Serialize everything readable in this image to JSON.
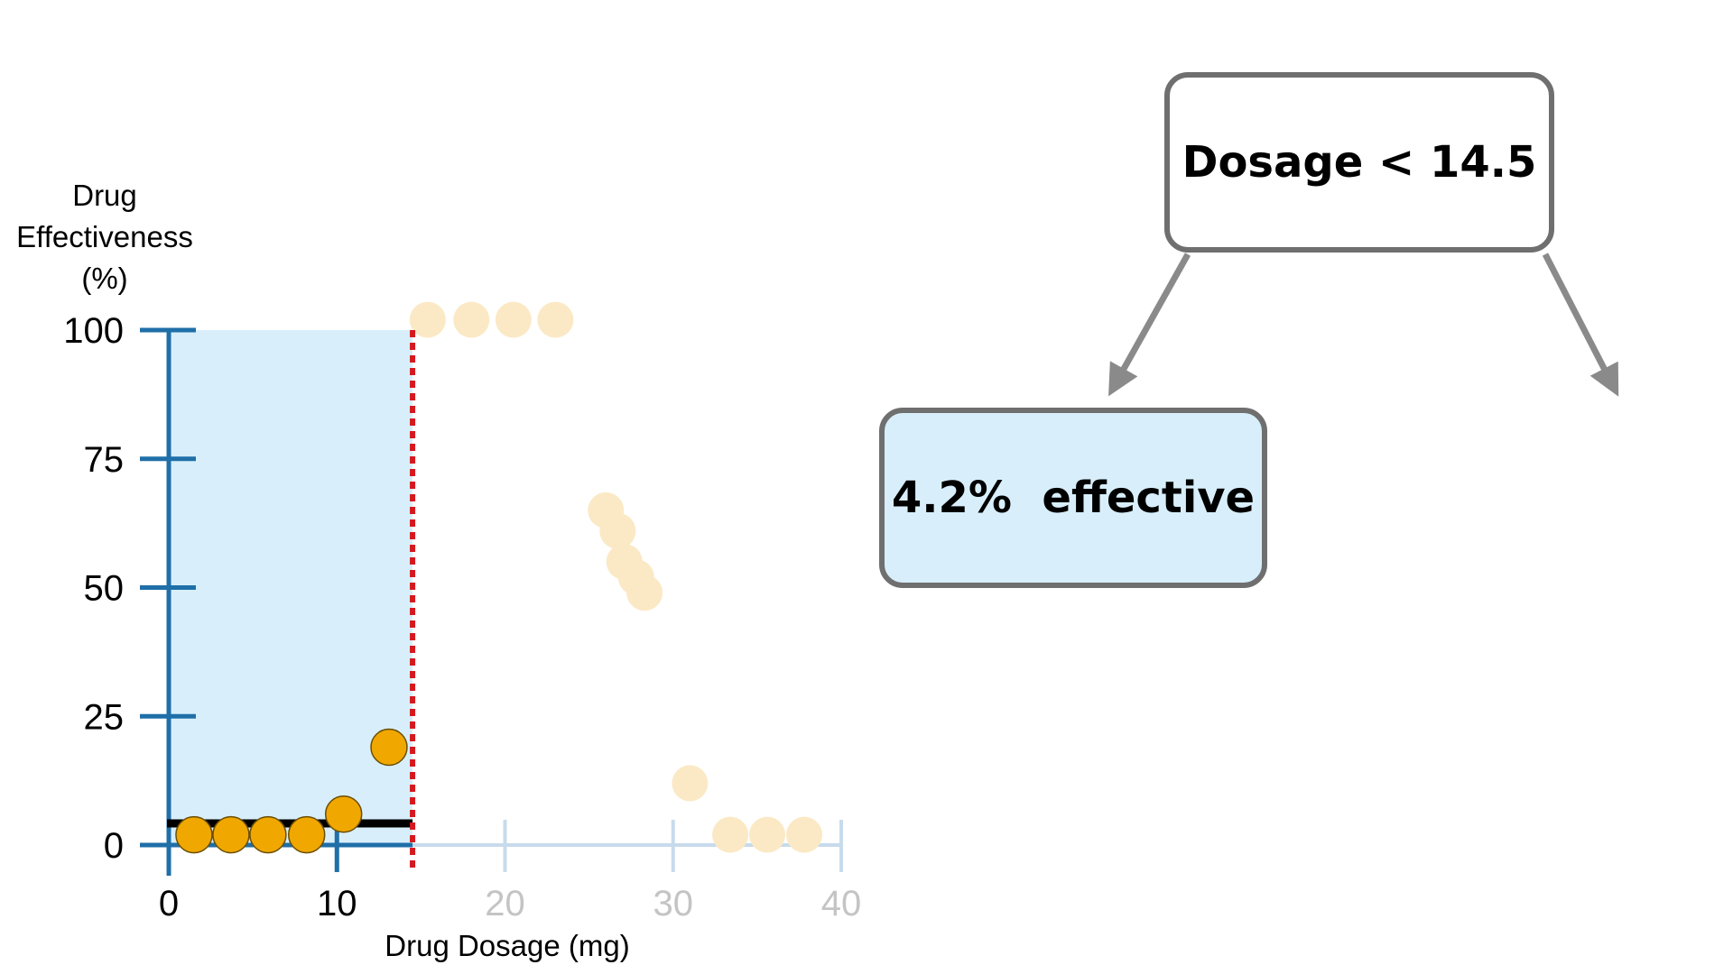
{
  "chart_data": {
    "type": "scatter",
    "ylabel_lines": [
      "Drug",
      "Effectiveness",
      "(%)"
    ],
    "xlabel": "Drug Dosage (mg)",
    "xlim": [
      0,
      40
    ],
    "ylim": [
      0,
      100
    ],
    "x_ticks": [
      0,
      10,
      20,
      30,
      40
    ],
    "x_tick_labels": [
      "0",
      "10",
      "20",
      "30",
      "40"
    ],
    "y_ticks": [
      0,
      25,
      50,
      75,
      100
    ],
    "y_tick_labels": [
      "0",
      "25",
      "50",
      "75",
      "100"
    ],
    "threshold_x": 14.5,
    "highlight_region": {
      "x": [
        0,
        14.5
      ],
      "y": [
        0,
        100
      ]
    },
    "mean_line": {
      "x": [
        0,
        14.5
      ],
      "y": 4.2
    },
    "series": [
      {
        "points": [
          [
            1.5,
            2
          ],
          [
            3.7,
            2
          ],
          [
            5.9,
            2
          ],
          [
            8.2,
            2
          ],
          [
            10.4,
            6
          ],
          [
            13.1,
            19
          ]
        ],
        "color": "#f0a800",
        "active": true
      },
      {
        "points": [
          [
            15.4,
            102
          ],
          [
            18,
            102
          ],
          [
            20.5,
            102
          ],
          [
            23,
            102
          ],
          [
            26,
            65
          ],
          [
            26.7,
            61
          ],
          [
            27.1,
            55
          ],
          [
            27.8,
            52
          ],
          [
            28.3,
            49
          ],
          [
            31,
            12
          ],
          [
            33.4,
            2
          ],
          [
            35.6,
            2
          ],
          [
            37.8,
            2
          ]
        ],
        "color": "#fbe9c6",
        "active": false
      }
    ],
    "colors": {
      "axis_active": "#1f6fa8",
      "axis_inactive": "#c7dbec",
      "region_fill": "#d8effb",
      "threshold": "#d6191f",
      "mean_line": "#000000",
      "tick_label_active": "#000000",
      "tick_label_inactive": "#c4c4c4"
    }
  },
  "tree": {
    "root_label": "Dosage < 14.5",
    "leaf_label": "4.2%  effective",
    "node_border_color": "#6f6f6f",
    "leaf_fill": "#d8effb",
    "arrow_color": "#8a8a8a"
  }
}
